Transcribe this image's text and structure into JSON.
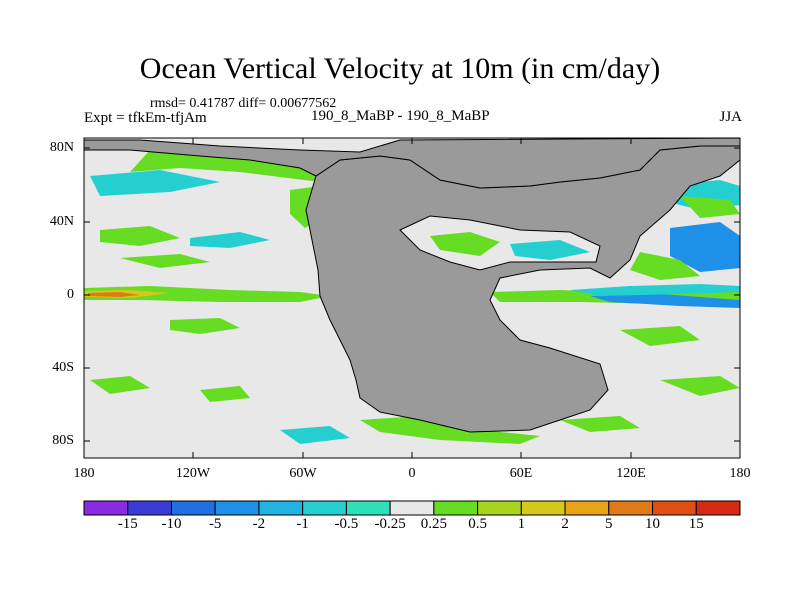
{
  "title": "Ocean Vertical Velocity at 10m (in cm/day)",
  "stats": "rmsd= 0.41787 diff= 0.00677562",
  "left_label": "Expt = tfkEm-tfjAm",
  "center_label": "190_8_MaBP - 190_8_MaBP",
  "right_label": "JJA",
  "lat_labels": [
    "80N",
    "40N",
    "0",
    "40S",
    "80S"
  ],
  "lon_labels": [
    "180",
    "120W",
    "60W",
    "0",
    "60E",
    "120E",
    "180"
  ],
  "colorbar": {
    "labels": [
      "-15",
      "-10",
      "-5",
      "-2",
      "-1",
      "-0.5",
      "-0.25",
      "0.25",
      "0.5",
      "1",
      "2",
      "5",
      "10",
      "15"
    ],
    "colors": [
      "#8a2be2",
      "#3b3bd6",
      "#1f6fe0",
      "#1e90e8",
      "#20b2e0",
      "#25cfd0",
      "#2de0b8",
      "#e8e8e8",
      "#66dd22",
      "#a8d41e",
      "#d4c81a",
      "#e8a418",
      "#e07a16",
      "#e04e14",
      "#d82a10"
    ]
  },
  "map_colors": {
    "land": "#9a9a9a",
    "ocean_background": "#e8e8e8"
  }
}
